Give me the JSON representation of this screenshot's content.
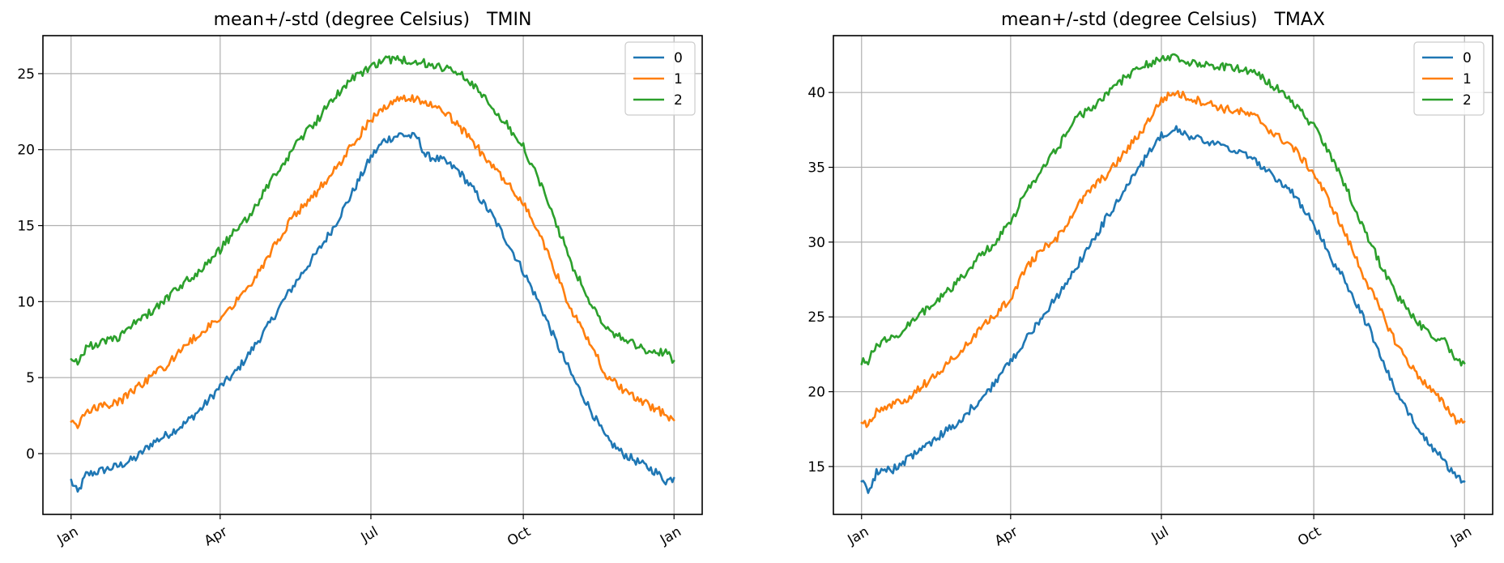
{
  "chart_data": [
    {
      "type": "line",
      "title": "mean+/-std (degree Celsius)   TMIN",
      "xlabel": "",
      "ylabel": "",
      "x_tick_labels": [
        "Jan",
        "Apr",
        "Jul",
        "Oct",
        "Jan"
      ],
      "x_tick_days": [
        1,
        91,
        182,
        274,
        365
      ],
      "x_range": [
        -16,
        382
      ],
      "ylim": [
        -4,
        27.5
      ],
      "y_ticks": [
        0,
        5,
        10,
        15,
        20,
        25
      ],
      "grid": true,
      "legend_position": "top-right",
      "series": [
        {
          "name": "0",
          "color": "#1f77b4",
          "points": [
            [
              1,
              -1.8
            ],
            [
              5,
              -2.6
            ],
            [
              10,
              -1.4
            ],
            [
              20,
              -1.1
            ],
            [
              30,
              -0.8
            ],
            [
              40,
              -0.3
            ],
            [
              50,
              0.7
            ],
            [
              60,
              1.3
            ],
            [
              70,
              2.0
            ],
            [
              80,
              3.0
            ],
            [
              91,
              4.4
            ],
            [
              100,
              5.3
            ],
            [
              110,
              6.8
            ],
            [
              120,
              8.4
            ],
            [
              130,
              10.2
            ],
            [
              140,
              11.8
            ],
            [
              150,
              13.3
            ],
            [
              160,
              15.0
            ],
            [
              170,
              17.0
            ],
            [
              182,
              19.5
            ],
            [
              190,
              20.6
            ],
            [
              200,
              21.0
            ],
            [
              210,
              20.8
            ],
            [
              215,
              19.6
            ],
            [
              225,
              19.3
            ],
            [
              235,
              18.6
            ],
            [
              245,
              17.2
            ],
            [
              255,
              15.7
            ],
            [
              265,
              13.8
            ],
            [
              274,
              12.0
            ],
            [
              284,
              9.8
            ],
            [
              294,
              7.3
            ],
            [
              304,
              5.0
            ],
            [
              314,
              3.0
            ],
            [
              324,
              1.0
            ],
            [
              334,
              0.0
            ],
            [
              344,
              -0.6
            ],
            [
              354,
              -1.2
            ],
            [
              360,
              -1.8
            ],
            [
              365,
              -1.6
            ]
          ]
        },
        {
          "name": "1",
          "color": "#ff7f0e",
          "points": [
            [
              1,
              2.1
            ],
            [
              5,
              1.7
            ],
            [
              10,
              2.9
            ],
            [
              20,
              3.1
            ],
            [
              30,
              3.4
            ],
            [
              40,
              4.3
            ],
            [
              50,
              5.1
            ],
            [
              60,
              5.9
            ],
            [
              70,
              7.1
            ],
            [
              80,
              8.0
            ],
            [
              91,
              8.9
            ],
            [
              100,
              10.0
            ],
            [
              110,
              11.3
            ],
            [
              120,
              13.0
            ],
            [
              130,
              14.8
            ],
            [
              140,
              16.2
            ],
            [
              150,
              17.3
            ],
            [
              160,
              18.6
            ],
            [
              170,
              20.2
            ],
            [
              182,
              22.0
            ],
            [
              190,
              22.8
            ],
            [
              200,
              23.3
            ],
            [
              210,
              23.4
            ],
            [
              220,
              22.8
            ],
            [
              230,
              22.1
            ],
            [
              240,
              21.0
            ],
            [
              250,
              19.6
            ],
            [
              260,
              18.3
            ],
            [
              274,
              16.5
            ],
            [
              284,
              14.4
            ],
            [
              294,
              11.8
            ],
            [
              304,
              9.2
            ],
            [
              314,
              7.3
            ],
            [
              324,
              5.2
            ],
            [
              334,
              4.2
            ],
            [
              344,
              3.5
            ],
            [
              354,
              2.9
            ],
            [
              360,
              2.6
            ],
            [
              365,
              2.2
            ]
          ]
        },
        {
          "name": "2",
          "color": "#2ca02c",
          "points": [
            [
              1,
              6.3
            ],
            [
              5,
              6.0
            ],
            [
              10,
              7.0
            ],
            [
              20,
              7.3
            ],
            [
              30,
              7.6
            ],
            [
              40,
              8.8
            ],
            [
              50,
              9.3
            ],
            [
              60,
              10.3
            ],
            [
              70,
              11.3
            ],
            [
              80,
              12.1
            ],
            [
              91,
              13.4
            ],
            [
              100,
              14.7
            ],
            [
              110,
              15.8
            ],
            [
              120,
              17.7
            ],
            [
              130,
              19.2
            ],
            [
              140,
              20.8
            ],
            [
              150,
              22.0
            ],
            [
              160,
              23.5
            ],
            [
              170,
              24.6
            ],
            [
              182,
              25.4
            ],
            [
              190,
              25.9
            ],
            [
              200,
              25.9
            ],
            [
              210,
              25.8
            ],
            [
              220,
              25.5
            ],
            [
              230,
              25.2
            ],
            [
              240,
              24.7
            ],
            [
              250,
              23.6
            ],
            [
              260,
              22.2
            ],
            [
              274,
              20.2
            ],
            [
              284,
              17.8
            ],
            [
              294,
              15.1
            ],
            [
              304,
              12.3
            ],
            [
              314,
              10.0
            ],
            [
              324,
              8.2
            ],
            [
              334,
              7.6
            ],
            [
              344,
              7.0
            ],
            [
              354,
              6.5
            ],
            [
              360,
              6.8
            ],
            [
              365,
              6.1
            ]
          ]
        }
      ]
    },
    {
      "type": "line",
      "title": "mean+/-std (degree Celsius)   TMAX",
      "xlabel": "",
      "ylabel": "",
      "x_tick_labels": [
        "Jan",
        "Apr",
        "Jul",
        "Oct",
        "Jan"
      ],
      "x_tick_days": [
        1,
        91,
        182,
        274,
        365
      ],
      "x_range": [
        -16,
        382
      ],
      "ylim": [
        11.8,
        43.8
      ],
      "y_ticks": [
        15,
        20,
        25,
        30,
        35,
        40
      ],
      "grid": true,
      "legend_position": "top-right",
      "series": [
        {
          "name": "0",
          "color": "#1f77b4",
          "points": [
            [
              1,
              14.0
            ],
            [
              5,
              13.3
            ],
            [
              10,
              14.6
            ],
            [
              20,
              14.8
            ],
            [
              30,
              15.6
            ],
            [
              40,
              16.4
            ],
            [
              50,
              17.2
            ],
            [
              60,
              18.0
            ],
            [
              70,
              19.2
            ],
            [
              80,
              20.4
            ],
            [
              91,
              22.0
            ],
            [
              100,
              23.5
            ],
            [
              110,
              25.0
            ],
            [
              120,
              26.5
            ],
            [
              130,
              28.2
            ],
            [
              140,
              30.0
            ],
            [
              150,
              31.8
            ],
            [
              160,
              33.5
            ],
            [
              170,
              35.2
            ],
            [
              182,
              37.2
            ],
            [
              190,
              37.6
            ],
            [
              200,
              37.0
            ],
            [
              210,
              36.7
            ],
            [
              220,
              36.3
            ],
            [
              230,
              36.0
            ],
            [
              240,
              35.3
            ],
            [
              250,
              34.3
            ],
            [
              260,
              33.5
            ],
            [
              274,
              31.2
            ],
            [
              284,
              29.0
            ],
            [
              294,
              27.2
            ],
            [
              304,
              25.0
            ],
            [
              314,
              22.6
            ],
            [
              324,
              20.0
            ],
            [
              334,
              18.0
            ],
            [
              344,
              16.5
            ],
            [
              354,
              15.2
            ],
            [
              360,
              14.3
            ],
            [
              365,
              14.0
            ]
          ]
        },
        {
          "name": "1",
          "color": "#ff7f0e",
          "points": [
            [
              1,
              18.0
            ],
            [
              5,
              17.8
            ],
            [
              10,
              18.7
            ],
            [
              20,
              19.2
            ],
            [
              30,
              19.6
            ],
            [
              40,
              20.6
            ],
            [
              50,
              21.6
            ],
            [
              60,
              22.6
            ],
            [
              70,
              23.8
            ],
            [
              80,
              25.0
            ],
            [
              91,
              26.2
            ],
            [
              100,
              28.2
            ],
            [
              110,
              29.5
            ],
            [
              120,
              30.4
            ],
            [
              130,
              32.2
            ],
            [
              140,
              33.6
            ],
            [
              150,
              34.6
            ],
            [
              160,
              36.0
            ],
            [
              170,
              37.4
            ],
            [
              182,
              39.5
            ],
            [
              190,
              40.0
            ],
            [
              200,
              39.6
            ],
            [
              210,
              39.3
            ],
            [
              220,
              38.9
            ],
            [
              230,
              38.7
            ],
            [
              240,
              38.3
            ],
            [
              250,
              37.2
            ],
            [
              260,
              36.5
            ],
            [
              274,
              34.6
            ],
            [
              284,
              32.6
            ],
            [
              294,
              30.3
            ],
            [
              304,
              27.8
            ],
            [
              314,
              25.5
            ],
            [
              324,
              23.2
            ],
            [
              334,
              21.5
            ],
            [
              344,
              20.2
            ],
            [
              354,
              19.0
            ],
            [
              360,
              18.1
            ],
            [
              365,
              18.0
            ]
          ]
        },
        {
          "name": "2",
          "color": "#2ca02c",
          "points": [
            [
              1,
              22.0
            ],
            [
              5,
              22.1
            ],
            [
              10,
              23.2
            ],
            [
              20,
              23.6
            ],
            [
              30,
              24.5
            ],
            [
              40,
              25.5
            ],
            [
              50,
              26.4
            ],
            [
              60,
              27.4
            ],
            [
              70,
              28.8
            ],
            [
              80,
              29.8
            ],
            [
              91,
              31.3
            ],
            [
              100,
              33.3
            ],
            [
              110,
              34.8
            ],
            [
              120,
              36.4
            ],
            [
              130,
              38.2
            ],
            [
              140,
              39.0
            ],
            [
              150,
              40.0
            ],
            [
              160,
              41.0
            ],
            [
              170,
              41.8
            ],
            [
              182,
              42.2
            ],
            [
              190,
              42.3
            ],
            [
              200,
              42.0
            ],
            [
              210,
              41.9
            ],
            [
              220,
              41.7
            ],
            [
              230,
              41.6
            ],
            [
              240,
              41.2
            ],
            [
              250,
              40.4
            ],
            [
              260,
              39.6
            ],
            [
              274,
              37.7
            ],
            [
              284,
              35.8
            ],
            [
              294,
              33.5
            ],
            [
              304,
              31.0
            ],
            [
              314,
              28.6
            ],
            [
              324,
              26.5
            ],
            [
              334,
              25.0
            ],
            [
              344,
              23.8
            ],
            [
              354,
              23.3
            ],
            [
              360,
              22.0
            ],
            [
              365,
              21.9
            ]
          ]
        }
      ]
    }
  ]
}
